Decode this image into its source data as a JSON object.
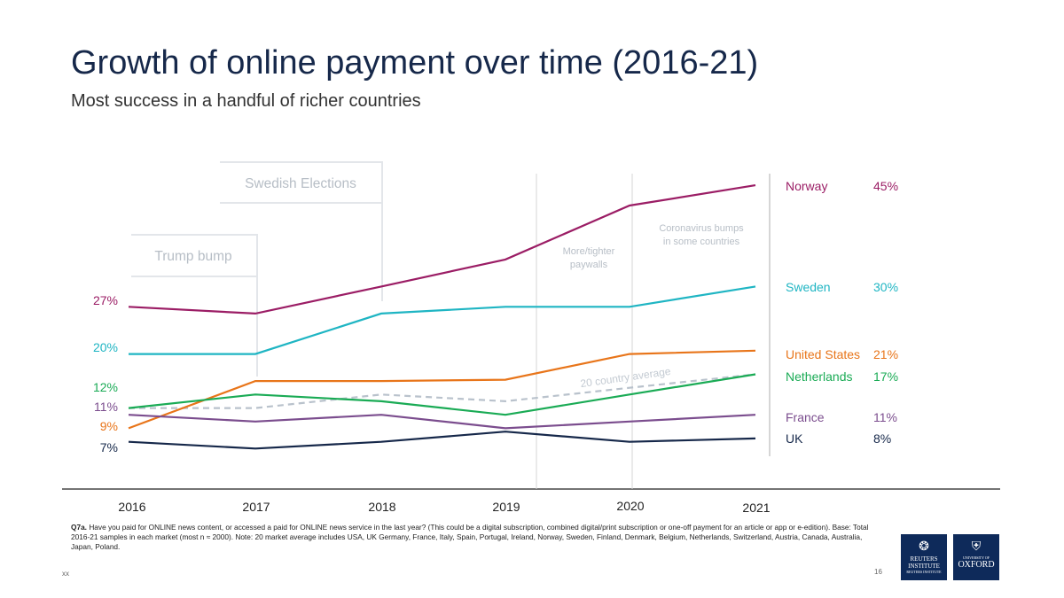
{
  "header": {
    "title": "Growth of online payment over time (2016-21)",
    "subtitle": "Most success in a handful of richer countries"
  },
  "chart_data": {
    "type": "line",
    "x": [
      "2016",
      "2017",
      "2018",
      "2019",
      "2020",
      "2021"
    ],
    "ylim": [
      0,
      50
    ],
    "grid": false,
    "series": [
      {
        "name": "Norway",
        "color": "#9b1d65",
        "values": [
          27,
          26,
          30,
          34,
          42,
          45
        ],
        "start_label": "27%",
        "end_label": "45%"
      },
      {
        "name": "Sweden",
        "color": "#1fb5c3",
        "values": [
          20,
          20,
          26,
          27,
          27,
          30
        ],
        "start_label": "20%",
        "end_label": "30%"
      },
      {
        "name": "United States",
        "color": "#e8751a",
        "values": [
          9,
          16,
          16,
          16.2,
          20,
          20.5
        ],
        "start_label": "9%",
        "end_label": "21%"
      },
      {
        "name": "Netherlands",
        "color": "#1aab55",
        "values": [
          12,
          14,
          13,
          11,
          14,
          17
        ],
        "start_label": "12%",
        "end_label": "17%"
      },
      {
        "name": "France",
        "color": "#7b4d8e",
        "values": [
          11,
          10,
          11,
          9,
          10,
          11
        ],
        "start_label": "11%",
        "end_label": "11%"
      },
      {
        "name": "UK",
        "color": "#16284a",
        "values": [
          7,
          6,
          7,
          8.5,
          7,
          7.5
        ],
        "start_label": "7%",
        "end_label": "8%"
      }
    ],
    "average": {
      "name": "20 country average",
      "color": "#b9c2cc",
      "values": [
        12,
        12,
        14,
        13,
        15,
        17
      ]
    },
    "annotations": [
      {
        "text": "Trump bump"
      },
      {
        "text": "Swedish Elections"
      },
      {
        "text": "More/tighter paywalls"
      },
      {
        "text": "Coronavirus bumps in some countries"
      }
    ]
  },
  "footnote": {
    "question_label": "Q7a.",
    "text": "Have you paid for ONLINE news content, or accessed a paid for ONLINE news service in the last year? (This could be a digital subscription, combined digital/print subscription or one-off payment for an article or app or e-edition). Base: Total 2016-21 samples in each market (most n ≈ 2000). Note: 20 market average includes USA, UK Germany, France, Italy, Spain, Portugal, Ireland, Norway, Sweden, Finland, Denmark, Belgium, Netherlands, Switzerland, Austria, Canada, Australia, Japan, Poland."
  },
  "footer": {
    "left": "xx",
    "page": "16"
  },
  "logos": {
    "reuters": {
      "line1": "REUTERS",
      "line2": "INSTITUTE",
      "line3": "REUTERS INSTITUTE"
    },
    "oxford": {
      "line1": "UNIVERSITY OF",
      "line2": "OXFORD"
    }
  }
}
